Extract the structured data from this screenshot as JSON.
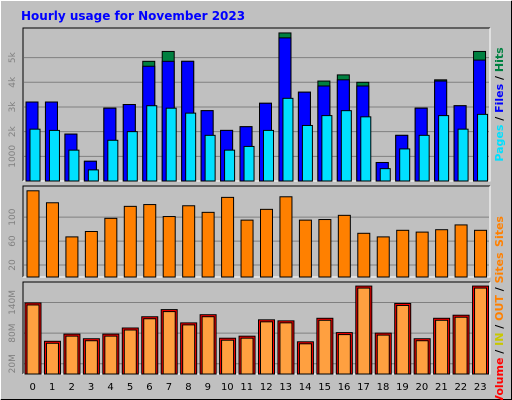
{
  "title": "Hourly usage for November 2023",
  "colors": {
    "page_bg": "#c0c0c0",
    "plot_bg": "#c0c0c0",
    "title_text": "#0000ff",
    "hits": "#008040",
    "files": "#0000ff",
    "pages": "#00e0ff",
    "sites": "#ff8000",
    "volume": "#ff0000",
    "volume_face": "#ffa040",
    "kbin": "#c8c800",
    "kbout": "#ff8000"
  },
  "chart_data": [
    {
      "type": "bar",
      "name": "pages-files-hits",
      "categories": [
        "0",
        "1",
        "2",
        "3",
        "4",
        "5",
        "6",
        "7",
        "8",
        "9",
        "10",
        "11",
        "12",
        "13",
        "14",
        "15",
        "16",
        "17",
        "18",
        "19",
        "20",
        "21",
        "22",
        "23"
      ],
      "series": [
        {
          "name": "Hits",
          "values": [
            3200,
            3200,
            1900,
            800,
            2950,
            3100,
            4850,
            5250,
            4850,
            2850,
            2050,
            2200,
            3150,
            6000,
            3600,
            4050,
            4300,
            4000,
            750,
            1850,
            2950,
            4100,
            3050,
            5250
          ]
        },
        {
          "name": "Files",
          "values": [
            3200,
            3200,
            1900,
            800,
            2950,
            3100,
            4650,
            4850,
            4850,
            2850,
            2050,
            2200,
            3150,
            5800,
            3600,
            3850,
            4100,
            3850,
            750,
            1850,
            2950,
            4050,
            3050,
            4900
          ]
        },
        {
          "name": "Pages",
          "values": [
            2100,
            2050,
            1250,
            450,
            1650,
            2000,
            3050,
            2950,
            2750,
            1850,
            1250,
            1400,
            2050,
            3350,
            2250,
            2650,
            2850,
            2600,
            500,
            1300,
            1850,
            2650,
            2100,
            2700
          ]
        }
      ],
      "y_ticks": [
        1000,
        2000,
        3000,
        4000,
        5000
      ],
      "y_tick_labels": [
        "1000",
        "2k",
        "3k",
        "4k",
        "5k"
      ],
      "ylim": [
        0,
        6200
      ],
      "side_label": [
        {
          "text": "Pages",
          "color": "#00e0ff"
        },
        {
          "text": " / ",
          "color": "#000000"
        },
        {
          "text": "Files",
          "color": "#0000ff"
        },
        {
          "text": " / ",
          "color": "#000000"
        },
        {
          "text": "Hits",
          "color": "#008040"
        }
      ]
    },
    {
      "type": "bar",
      "name": "sites",
      "categories": [
        "0",
        "1",
        "2",
        "3",
        "4",
        "5",
        "6",
        "7",
        "8",
        "9",
        "10",
        "11",
        "12",
        "13",
        "14",
        "15",
        "16",
        "17",
        "18",
        "19",
        "20",
        "21",
        "22",
        "23"
      ],
      "series": [
        {
          "name": "Sites",
          "values": [
            144,
            124,
            67,
            76,
            98,
            118,
            121,
            101,
            119,
            108,
            133,
            95,
            113,
            134,
            95,
            96,
            103,
            73,
            67,
            78,
            75,
            79,
            87,
            78
          ]
        }
      ],
      "y_ticks": [
        20,
        60,
        100
      ],
      "y_tick_labels": [
        "20",
        "60",
        "100"
      ],
      "ylim": [
        0,
        152
      ],
      "side_label": [
        {
          "text": "Sites",
          "color": "#ff8000"
        }
      ]
    },
    {
      "type": "bar",
      "name": "volume",
      "categories": [
        "0",
        "1",
        "2",
        "3",
        "4",
        "5",
        "6",
        "7",
        "8",
        "9",
        "10",
        "11",
        "12",
        "13",
        "14",
        "15",
        "16",
        "17",
        "18",
        "19",
        "20",
        "21",
        "22",
        "23"
      ],
      "series": [
        {
          "name": "Volume",
          "values": [
            139,
            64,
            78,
            69,
            78,
            90,
            112,
            126,
            100,
            116,
            70,
            74,
            106,
            104,
            63,
            109,
            81,
            172,
            80,
            138,
            69,
            109,
            115,
            172
          ]
        }
      ],
      "y_ticks": [
        20,
        80,
        140
      ],
      "y_tick_labels": [
        "20M",
        "80M",
        "140M"
      ],
      "ylim": [
        0,
        180
      ],
      "side_label": [
        {
          "text": "Volume",
          "color": "#ff0000"
        },
        {
          "text": " / ",
          "color": "#000000"
        },
        {
          "text": "IN",
          "color": "#c8c800"
        },
        {
          "text": " / ",
          "color": "#000000"
        },
        {
          "text": "OUT",
          "color": "#ff8000"
        },
        {
          "text": " / ",
          "color": "#000000"
        },
        {
          "text": "Sites",
          "color": "#ff8000"
        }
      ]
    }
  ]
}
